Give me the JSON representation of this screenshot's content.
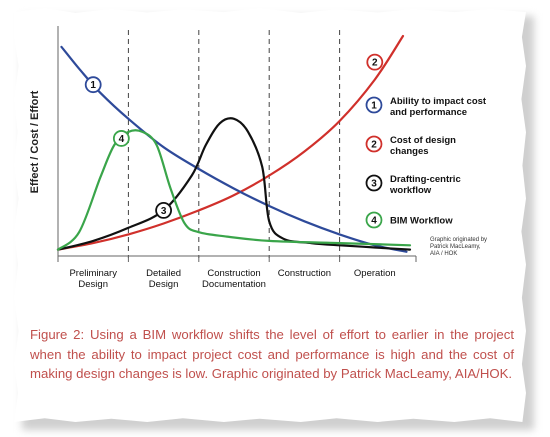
{
  "chart_data": {
    "type": "line",
    "ylabel": "Effect / Cost / Effort",
    "phases": [
      "Preliminary\nDesign",
      "Detailed\nDesign",
      "Construction\nDocumentation",
      "Construction",
      "Operation"
    ],
    "phase_boundaries": [
      1,
      2,
      3,
      4
    ],
    "xlim": [
      0,
      5
    ],
    "ylim": [
      0,
      1
    ],
    "series": [
      {
        "marker": "1",
        "name": "Ability to impact cost\nand performance",
        "color": "#2e4a9a",
        "x": [
          0.05,
          0.3,
          0.6,
          1.0,
          1.5,
          2.0,
          2.5,
          3.0,
          3.5,
          4.0,
          4.5,
          4.95
        ],
        "y": [
          0.95,
          0.85,
          0.74,
          0.62,
          0.49,
          0.39,
          0.3,
          0.22,
          0.15,
          0.09,
          0.04,
          0.01
        ]
      },
      {
        "marker": "2",
        "name": "Cost of design\nchanges",
        "color": "#d0302b",
        "x": [
          0.0,
          0.5,
          1.0,
          1.5,
          2.0,
          2.5,
          3.0,
          3.5,
          4.0,
          4.5,
          4.9
        ],
        "y": [
          0.02,
          0.05,
          0.09,
          0.14,
          0.2,
          0.27,
          0.36,
          0.47,
          0.61,
          0.8,
          1.0
        ]
      },
      {
        "marker": "3",
        "name": "Drafting-centric\nworkflow",
        "color": "#111111",
        "x": [
          0.0,
          0.5,
          1.0,
          1.5,
          1.9,
          2.1,
          2.3,
          2.5,
          2.7,
          2.9,
          3.0,
          3.2,
          3.6,
          4.0,
          4.5,
          5.0
        ],
        "y": [
          0.02,
          0.06,
          0.12,
          0.2,
          0.36,
          0.5,
          0.6,
          0.62,
          0.56,
          0.4,
          0.15,
          0.07,
          0.05,
          0.04,
          0.03,
          0.02
        ]
      },
      {
        "marker": "4",
        "name": "BIM Workflow",
        "color": "#3aa54a",
        "x": [
          0.0,
          0.3,
          0.6,
          0.8,
          1.0,
          1.2,
          1.4,
          1.6,
          1.8,
          2.0,
          2.4,
          3.0,
          4.0,
          5.0
        ],
        "y": [
          0.02,
          0.1,
          0.35,
          0.5,
          0.56,
          0.56,
          0.5,
          0.3,
          0.14,
          0.1,
          0.08,
          0.06,
          0.05,
          0.04
        ]
      }
    ],
    "legend_position": "right",
    "credit": "Graphic originated by\nPatrick MacLeamy,\nAIA / HOK",
    "grid": false
  },
  "caption": "Figure 2: Using a BIM workflow shifts the level of effort to earlier in the project when the ability to impact project cost and performance is high and the cost of making design changes is low. Graphic originated by Patrick MacLeamy, AIA/HOK."
}
